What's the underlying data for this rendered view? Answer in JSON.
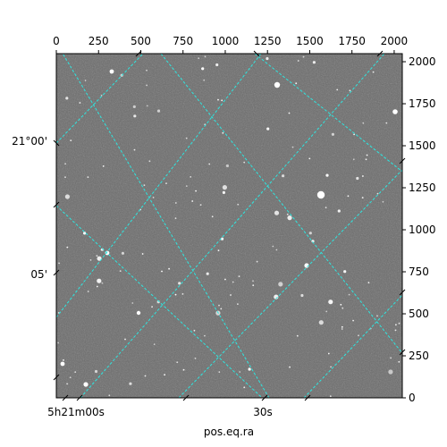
{
  "figure": {
    "pixel_axis_top": {
      "ticks": [
        "0",
        "250",
        "500",
        "750",
        "1000",
        "1250",
        "1500",
        "1750",
        "2000"
      ]
    },
    "pixel_axis_right": {
      "ticks": [
        "0",
        "250",
        "500",
        "750",
        "1000",
        "1250",
        "1500",
        "1750",
        "2000"
      ]
    },
    "ra_axis": {
      "ticks": [
        "5h21m00s",
        "30s"
      ],
      "title": "pos.eq.ra"
    },
    "dec_axis": {
      "ticks": [
        "21°00'",
        "05'"
      ]
    },
    "colors": {
      "grid": "#2ee6e0",
      "sky": "#6b6b6b",
      "frame": "#000000"
    }
  }
}
